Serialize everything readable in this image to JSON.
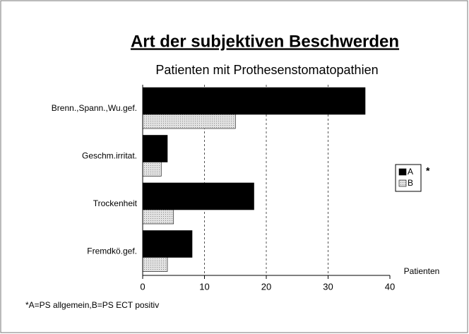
{
  "chart_data": {
    "type": "hbar",
    "title": "Art der subjektiven Beschwerden",
    "subtitle": "Patienten mit Prothesenstomatopathien",
    "categories": [
      "Brenn.,Spann.,Wu.gef.",
      "Geschm.irritat.",
      "Trockenheit",
      "Fremdkö.gef."
    ],
    "series": [
      {
        "name": "A",
        "color": "#000000",
        "values": [
          36,
          4,
          18,
          8
        ]
      },
      {
        "name": "B",
        "color": "#d4d4d4",
        "values": [
          15,
          3,
          5,
          4
        ]
      }
    ],
    "legend_note": "*",
    "x_label": "Patienten",
    "footnote": "*A=PS allgemein,B=PS ECT positiv",
    "xlim": [
      0,
      40
    ],
    "xticks": [
      0,
      10,
      20,
      30,
      40
    ],
    "grid": true,
    "legend": "right"
  }
}
